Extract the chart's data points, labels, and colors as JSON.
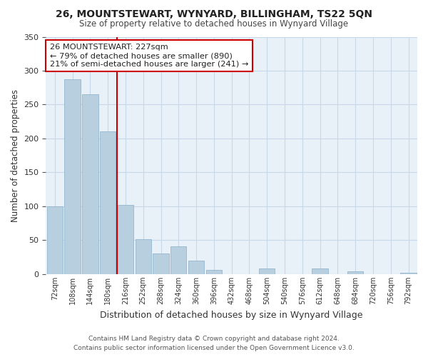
{
  "title": "26, MOUNTSTEWART, WYNYARD, BILLINGHAM, TS22 5QN",
  "subtitle": "Size of property relative to detached houses in Wynyard Village",
  "xlabel": "Distribution of detached houses by size in Wynyard Village",
  "ylabel": "Number of detached properties",
  "bar_labels": [
    "72sqm",
    "108sqm",
    "144sqm",
    "180sqm",
    "216sqm",
    "252sqm",
    "288sqm",
    "324sqm",
    "360sqm",
    "396sqm",
    "432sqm",
    "468sqm",
    "504sqm",
    "540sqm",
    "576sqm",
    "612sqm",
    "648sqm",
    "684sqm",
    "720sqm",
    "756sqm",
    "792sqm"
  ],
  "bar_values": [
    100,
    287,
    265,
    211,
    102,
    52,
    30,
    41,
    20,
    6,
    0,
    0,
    8,
    0,
    0,
    8,
    0,
    4,
    0,
    0,
    2
  ],
  "bar_color": "#b8cfe0",
  "bar_edge_color": "#8aaec8",
  "grid_color": "#c8d8e8",
  "background_color": "#ffffff",
  "plot_bg_color": "#e8f0f8",
  "annotation_box_text": "26 MOUNTSTEWART: 227sqm\n← 79% of detached houses are smaller (890)\n21% of semi-detached houses are larger (241) →",
  "annotation_box_color": "#ffffff",
  "annotation_box_edge_color": "#cc0000",
  "vline_x_index": 3.5,
  "vline_color": "#cc0000",
  "ylim": [
    0,
    350
  ],
  "yticks": [
    0,
    50,
    100,
    150,
    200,
    250,
    300,
    350
  ],
  "footer_line1": "Contains HM Land Registry data © Crown copyright and database right 2024.",
  "footer_line2": "Contains public sector information licensed under the Open Government Licence v3.0."
}
